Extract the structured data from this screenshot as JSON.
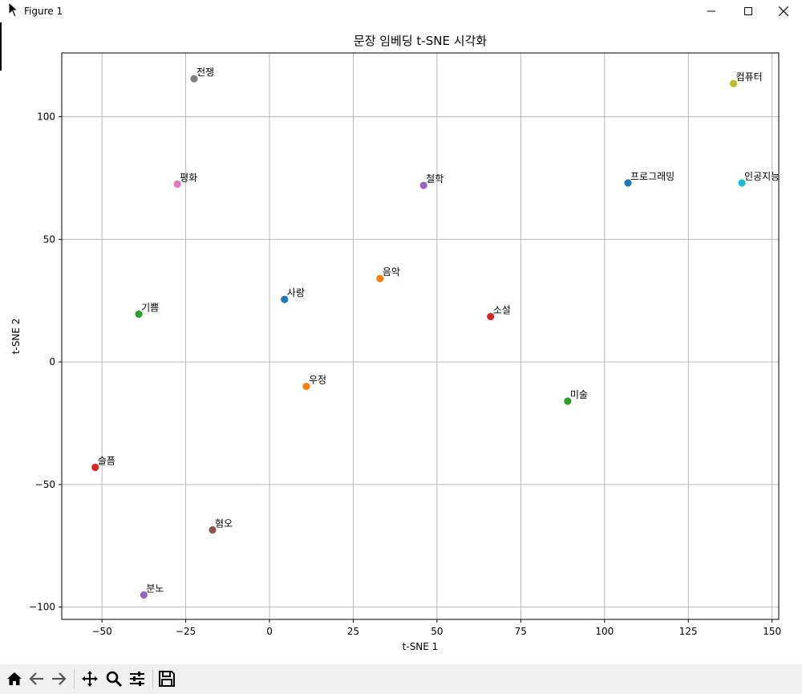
{
  "window": {
    "title": "Figure 1"
  },
  "toolbar": {
    "buttons": [
      "home-icon",
      "back-icon",
      "forward-icon",
      "pan-icon",
      "zoom-icon",
      "configure-icon",
      "save-icon"
    ]
  },
  "chart_data": {
    "type": "scatter",
    "title": "문장 임베딩 t-SNE 시각화",
    "xlabel": "t-SNE 1",
    "ylabel": "t-SNE 2",
    "xlim": [
      -62,
      152
    ],
    "ylim": [
      -105,
      126
    ],
    "xticks": [
      -50,
      -25,
      0,
      25,
      50,
      75,
      100,
      125,
      150
    ],
    "xtick_labels": [
      "−50",
      "−25",
      "0",
      "25",
      "50",
      "75",
      "100",
      "125",
      "150"
    ],
    "yticks": [
      -100,
      -50,
      0,
      50,
      100
    ],
    "ytick_labels": [
      "−100",
      "−50",
      "0",
      "50",
      "100"
    ],
    "grid": true,
    "points": [
      {
        "label": "전쟁",
        "x": -22.5,
        "y": 115.5,
        "color": "#7f7f7f"
      },
      {
        "label": "컴퓨터",
        "x": 138.5,
        "y": 113.5,
        "color": "#bcbd22"
      },
      {
        "label": "평화",
        "x": -27.5,
        "y": 72.5,
        "color": "#e377c2"
      },
      {
        "label": "철학",
        "x": 46.0,
        "y": 72.0,
        "color": "#9467bd"
      },
      {
        "label": "프로그래밍",
        "x": 107.0,
        "y": 73.0,
        "color": "#1f77b4"
      },
      {
        "label": "인공지능",
        "x": 141.0,
        "y": 73.0,
        "color": "#17becf"
      },
      {
        "label": "음악",
        "x": 33.0,
        "y": 34.0,
        "color": "#ff7f0e"
      },
      {
        "label": "사랑",
        "x": 4.5,
        "y": 25.5,
        "color": "#1f77b4"
      },
      {
        "label": "기쁨",
        "x": -39.0,
        "y": 19.5,
        "color": "#2ca02c"
      },
      {
        "label": "소설",
        "x": 66.0,
        "y": 18.5,
        "color": "#d62728"
      },
      {
        "label": "우정",
        "x": 11.0,
        "y": -10.0,
        "color": "#ff7f0e"
      },
      {
        "label": "미술",
        "x": 89.0,
        "y": -16.0,
        "color": "#2ca02c"
      },
      {
        "label": "슬픔",
        "x": -52.0,
        "y": -43.0,
        "color": "#d62728"
      },
      {
        "label": "혐오",
        "x": -17.0,
        "y": -68.5,
        "color": "#8c564b"
      },
      {
        "label": "분노",
        "x": -37.5,
        "y": -95.0,
        "color": "#9467bd"
      }
    ]
  }
}
